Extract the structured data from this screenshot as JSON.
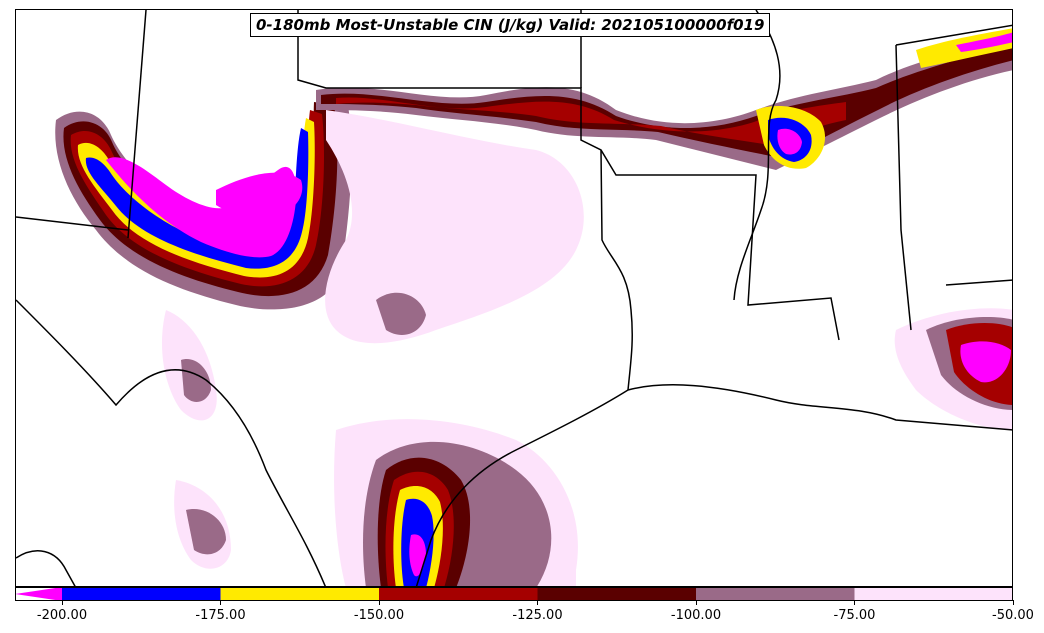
{
  "title": "0-180mb Most-Unstable CIN (J/kg) Valid: 202105100000f019",
  "colorbar": {
    "bins": [
      {
        "from": -200,
        "to": -175,
        "color": "#0000ff"
      },
      {
        "from": -175,
        "to": -150,
        "color": "#ffea00"
      },
      {
        "from": -150,
        "to": -125,
        "color": "#a50000"
      },
      {
        "from": -125,
        "to": -100,
        "color": "#5a0000"
      },
      {
        "from": -100,
        "to": -75,
        "color": "#9a6a88"
      },
      {
        "from": -75,
        "to": -50,
        "color": "#fde3fb"
      }
    ],
    "extend_low_color": "#ff00ff",
    "ticks": [
      "-200.00",
      "-175.00",
      "-150.00",
      "-125.00",
      "-100.00",
      "-75.00",
      "-50.00"
    ]
  }
}
